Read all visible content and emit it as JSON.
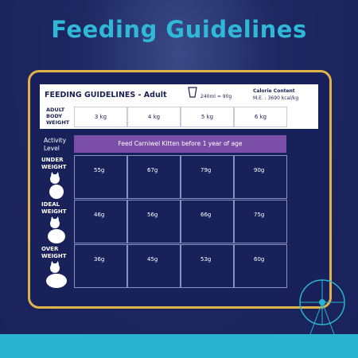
{
  "header": {
    "title": "Feeding Guidelines"
  },
  "card": {
    "title": "FEEDING GUIDELINES - Adult",
    "measure": "240ml = 90g",
    "calorie_title": "Calorie Content",
    "calorie_value": "M.E. : 3690 kcal/kg"
  },
  "table": {
    "weight_label": "ADULT BODY WEIGHT",
    "weights": [
      "3 kg",
      "4 kg",
      "5 kg",
      "6 kg"
    ],
    "activity_label": "Activity Level",
    "banner": "Feed Carniwel Kitten before 1 year of age",
    "rows": [
      {
        "label": "UNDER WEIGHT",
        "values": [
          "55g",
          "67g",
          "79g",
          "90g"
        ]
      },
      {
        "label": "IDEAL WEIGHT",
        "values": [
          "46g",
          "56g",
          "66g",
          "75g"
        ]
      },
      {
        "label": "OVER WEIGHT",
        "values": [
          "36g",
          "45g",
          "53g",
          "60g"
        ]
      }
    ]
  }
}
